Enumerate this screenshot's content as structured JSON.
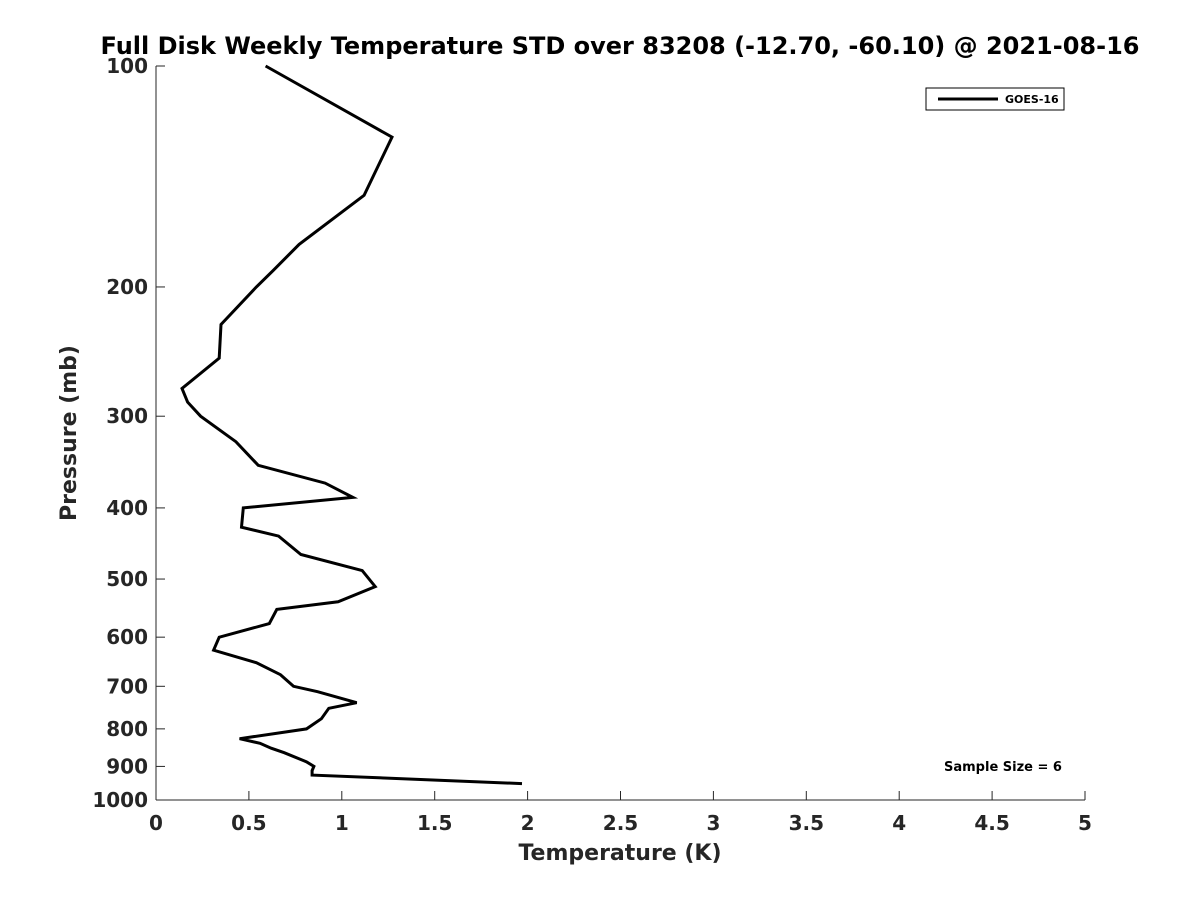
{
  "chart_data": {
    "type": "line",
    "title": "Full Disk Weekly Temperature STD over 83208 (-12.70, -60.10) @ 2021-08-16",
    "xlabel": "Temperature (K)",
    "ylabel": "Pressure (mb)",
    "xlim": [
      0,
      5
    ],
    "ylim": [
      100,
      1000
    ],
    "y_scale": "log",
    "y_reversed": true,
    "grid": false,
    "legend_position": "top-right",
    "x_ticks": [
      "0",
      "0.5",
      "1",
      "1.5",
      "2",
      "2.5",
      "3",
      "3.5",
      "4",
      "4.5",
      "5"
    ],
    "y_ticks": [
      "100",
      "200",
      "300",
      "400",
      "500",
      "600",
      "700",
      "800",
      "900",
      "1000"
    ],
    "series": [
      {
        "name": "GOES-16",
        "color": "#000000",
        "x": [
          0.59,
          1.27,
          1.12,
          0.77,
          0.63,
          0.54,
          0.35,
          0.34,
          0.14,
          0.17,
          0.24,
          0.43,
          0.55,
          0.91,
          1.06,
          0.47,
          0.46,
          0.66,
          0.78,
          1.11,
          1.18,
          0.98,
          0.65,
          0.61,
          0.34,
          0.31,
          0.54,
          0.67,
          0.74,
          0.87,
          1.08,
          0.93,
          0.89,
          0.81,
          0.45,
          0.56,
          0.62,
          0.69,
          0.81,
          0.85,
          0.84,
          0.84,
          1.97
        ],
        "y": [
          100,
          125,
          150,
          175,
          190,
          200,
          225,
          250,
          275,
          287,
          300,
          325,
          350,
          370,
          387,
          400,
          425,
          437,
          463,
          487,
          512,
          537,
          550,
          575,
          600,
          625,
          650,
          675,
          700,
          712,
          737,
          750,
          775,
          800,
          825,
          837,
          850,
          862,
          887,
          900,
          912,
          925,
          950
        ]
      }
    ],
    "annotations": [
      {
        "text": "Sample Size = 6",
        "position": "bottom-right"
      }
    ]
  }
}
